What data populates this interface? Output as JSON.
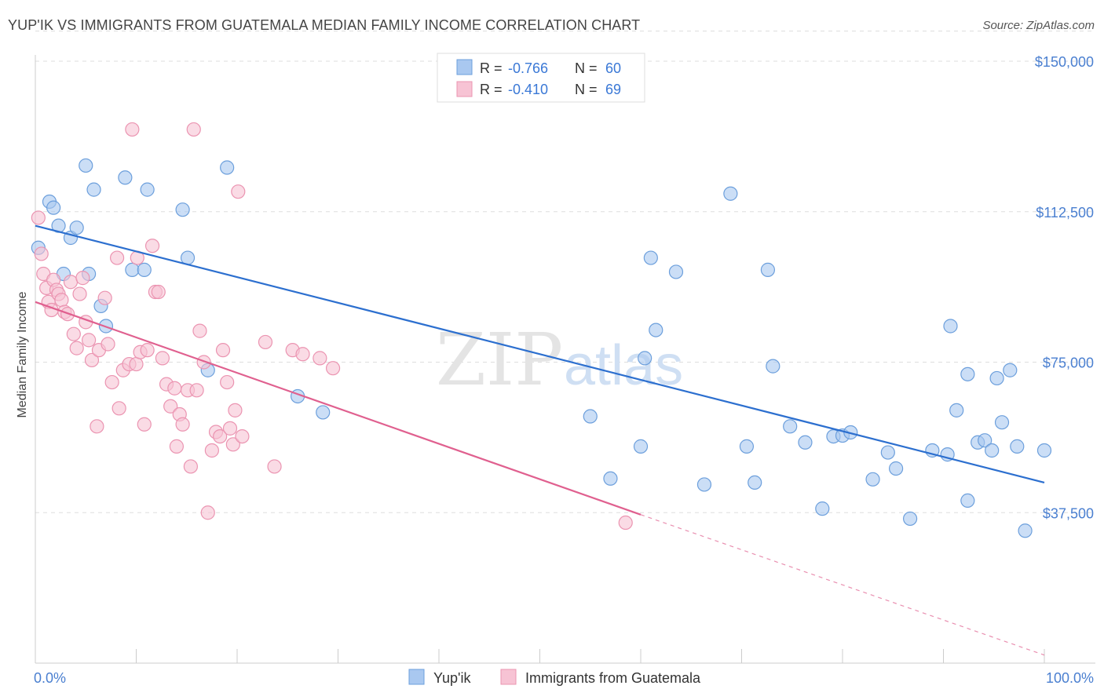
{
  "title": "YUP'IK VS IMMIGRANTS FROM GUATEMALA MEDIAN FAMILY INCOME CORRELATION CHART",
  "source": "Source: ZipAtlas.com",
  "watermark": {
    "zip": "ZIP",
    "atlas": "atlas"
  },
  "colors": {
    "blue_fill": "#a9c8f0",
    "blue_stroke": "#6c9fdc",
    "blue_line": "#2c6fcf",
    "pink_fill": "#f7c3d4",
    "pink_stroke": "#eb94b1",
    "pink_line": "#e0608f",
    "grid": "#dddddd",
    "axis_text": "#4a7fd0"
  },
  "legend_stats": [
    {
      "r_label": "R = ",
      "r_value": "-0.766",
      "n_label": "N = ",
      "n_value": "60"
    },
    {
      "r_label": "R = ",
      "r_value": "-0.410",
      "n_label": "N = ",
      "n_value": "69"
    }
  ],
  "chart_data": {
    "type": "scatter",
    "xlabel": "",
    "ylabel": "Median Family Income",
    "xlim": [
      0,
      100
    ],
    "ylim": [
      0,
      150000
    ],
    "x_tick_labels": [
      "0.0%",
      "100.0%"
    ],
    "y_ticks": [
      37500,
      75000,
      112500,
      150000
    ],
    "y_tick_labels": [
      "$37,500",
      "$75,000",
      "$112,500",
      "$150,000"
    ],
    "grid": true,
    "legend_position": "bottom",
    "series": [
      {
        "name": "Yup'ik",
        "trend": {
          "x": [
            0,
            100
          ],
          "y": [
            109000,
            45000
          ]
        },
        "points": [
          [
            0.3,
            103500
          ],
          [
            1.4,
            115000
          ],
          [
            1.8,
            113500
          ],
          [
            2.8,
            97000
          ],
          [
            2.3,
            109000
          ],
          [
            3.5,
            106000
          ],
          [
            4.1,
            108500
          ],
          [
            5.0,
            124000
          ],
          [
            5.3,
            97000
          ],
          [
            5.8,
            118000
          ],
          [
            6.5,
            89000
          ],
          [
            7.0,
            84000
          ],
          [
            8.9,
            121000
          ],
          [
            9.6,
            98000
          ],
          [
            10.8,
            98000
          ],
          [
            11.1,
            118000
          ],
          [
            14.6,
            113000
          ],
          [
            15.1,
            101000
          ],
          [
            17.1,
            73000
          ],
          [
            19.0,
            123500
          ],
          [
            26.0,
            66500
          ],
          [
            28.5,
            62500
          ],
          [
            55.0,
            61500
          ],
          [
            57.0,
            46000
          ],
          [
            60.0,
            54000
          ],
          [
            60.4,
            76000
          ],
          [
            61.0,
            101000
          ],
          [
            61.5,
            83000
          ],
          [
            63.5,
            97500
          ],
          [
            66.3,
            44500
          ],
          [
            68.9,
            117000
          ],
          [
            70.5,
            54000
          ],
          [
            71.3,
            45000
          ],
          [
            72.6,
            98000
          ],
          [
            73.1,
            74000
          ],
          [
            74.8,
            59000
          ],
          [
            76.3,
            55000
          ],
          [
            78.0,
            38500
          ],
          [
            79.1,
            56500
          ],
          [
            80.0,
            56700
          ],
          [
            80.8,
            57500
          ],
          [
            83.0,
            45800
          ],
          [
            84.5,
            52500
          ],
          [
            85.3,
            48500
          ],
          [
            86.7,
            36000
          ],
          [
            88.9,
            53000
          ],
          [
            90.4,
            52000
          ],
          [
            90.7,
            84000
          ],
          [
            91.3,
            63000
          ],
          [
            92.4,
            72000
          ],
          [
            92.4,
            40500
          ],
          [
            93.4,
            55000
          ],
          [
            94.1,
            55500
          ],
          [
            94.8,
            53000
          ],
          [
            95.3,
            71000
          ],
          [
            95.8,
            60000
          ],
          [
            96.6,
            73000
          ],
          [
            97.3,
            54000
          ],
          [
            98.1,
            33000
          ],
          [
            100.0,
            53000
          ]
        ]
      },
      {
        "name": "Immigrants from Guatemala",
        "trend": {
          "x": [
            0,
            60
          ],
          "y": [
            90000,
            37000
          ]
        },
        "trend_dashed": {
          "x": [
            60,
            100
          ],
          "y": [
            37000,
            2000
          ]
        },
        "points": [
          [
            0.3,
            111000
          ],
          [
            0.6,
            102000
          ],
          [
            0.8,
            97000
          ],
          [
            1.1,
            93500
          ],
          [
            1.3,
            90000
          ],
          [
            1.6,
            88000
          ],
          [
            1.8,
            95500
          ],
          [
            2.1,
            93000
          ],
          [
            2.3,
            92000
          ],
          [
            2.6,
            90500
          ],
          [
            2.9,
            87500
          ],
          [
            3.2,
            87000
          ],
          [
            3.5,
            95000
          ],
          [
            3.8,
            82000
          ],
          [
            4.1,
            78500
          ],
          [
            4.4,
            92000
          ],
          [
            4.7,
            96000
          ],
          [
            5.0,
            85000
          ],
          [
            5.3,
            80500
          ],
          [
            5.6,
            75500
          ],
          [
            6.1,
            59000
          ],
          [
            6.3,
            78000
          ],
          [
            6.9,
            91000
          ],
          [
            7.2,
            79500
          ],
          [
            7.6,
            70000
          ],
          [
            8.1,
            101000
          ],
          [
            8.3,
            63500
          ],
          [
            8.7,
            73000
          ],
          [
            9.3,
            74500
          ],
          [
            9.6,
            133000
          ],
          [
            10.0,
            74500
          ],
          [
            10.1,
            101000
          ],
          [
            10.4,
            77500
          ],
          [
            10.8,
            59500
          ],
          [
            11.1,
            78000
          ],
          [
            11.6,
            104000
          ],
          [
            11.9,
            92500
          ],
          [
            12.2,
            92500
          ],
          [
            12.6,
            76000
          ],
          [
            13.0,
            69500
          ],
          [
            13.4,
            64000
          ],
          [
            13.8,
            68500
          ],
          [
            14.0,
            54000
          ],
          [
            14.3,
            62000
          ],
          [
            14.6,
            59500
          ],
          [
            15.1,
            68000
          ],
          [
            15.4,
            49000
          ],
          [
            15.7,
            133000
          ],
          [
            16.0,
            68000
          ],
          [
            16.3,
            82800
          ],
          [
            16.7,
            75000
          ],
          [
            17.1,
            37500
          ],
          [
            17.5,
            53000
          ],
          [
            17.9,
            57600
          ],
          [
            18.3,
            56500
          ],
          [
            18.6,
            78000
          ],
          [
            19.0,
            70000
          ],
          [
            19.3,
            58500
          ],
          [
            19.6,
            54500
          ],
          [
            19.8,
            63000
          ],
          [
            20.1,
            117500
          ],
          [
            20.5,
            56500
          ],
          [
            22.8,
            80000
          ],
          [
            23.7,
            49000
          ],
          [
            25.5,
            78000
          ],
          [
            26.5,
            77000
          ],
          [
            28.2,
            76000
          ],
          [
            29.5,
            73500
          ],
          [
            58.5,
            35000
          ]
        ]
      }
    ]
  }
}
